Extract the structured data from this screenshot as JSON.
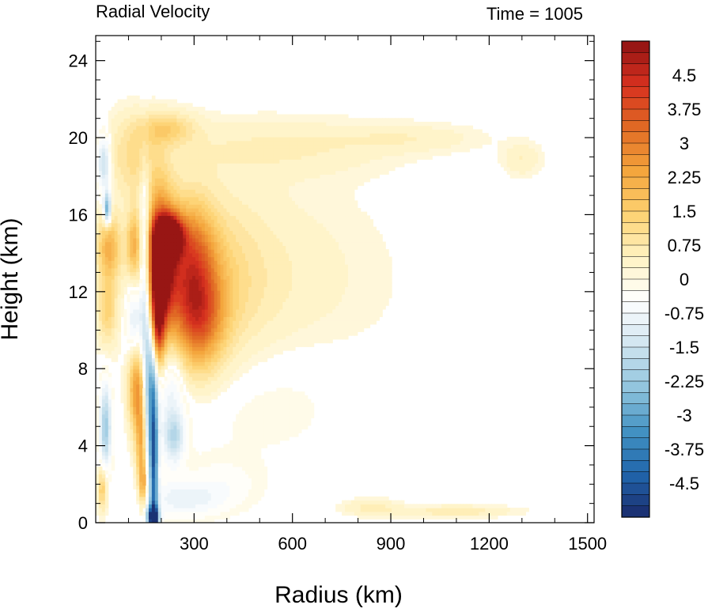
{
  "chart_data": {
    "type": "heatmap",
    "title": "Radial Velocity",
    "subtitle": "Time = 1005",
    "xlabel": "Radius (km)",
    "ylabel": "Height (km)",
    "xlim": [
      0,
      1520
    ],
    "ylim": [
      0,
      25.3
    ],
    "x_ticks": [
      300,
      600,
      900,
      1200,
      1500
    ],
    "x_tick_labels": [
      "300",
      "600",
      "900",
      "1200",
      "1500"
    ],
    "y_ticks": [
      0,
      4,
      8,
      12,
      16,
      20,
      24
    ],
    "y_tick_labels": [
      "0",
      "4",
      "8",
      "12",
      "16",
      "20",
      "24"
    ],
    "grid": false,
    "colorbar": {
      "vmin": -5.25,
      "vmax": 5.25,
      "step": 0.25,
      "tick_values": [
        4.5,
        3.75,
        3,
        2.25,
        1.5,
        0.75,
        0,
        -0.75,
        -1.5,
        -2.25,
        -3,
        -3.75,
        -4.5
      ],
      "tick_labels": [
        "4.5",
        "3.75",
        "3",
        "2.25",
        "1.5",
        "0.75",
        "0",
        "-0.75",
        "-1.5",
        "-2.25",
        "-3",
        "-3.75",
        "-4.5"
      ],
      "palette": [
        "#1a2a6c",
        "#2166ac",
        "#4393c3",
        "#92c5de",
        "#d1e5f0",
        "#ffffff",
        "#fff3c4",
        "#fdd272",
        "#f4a53c",
        "#e06a24",
        "#d7301f",
        "#8e1212"
      ]
    },
    "features": [
      {
        "r": 195,
        "z": 13.3,
        "sr": 32,
        "sz": 2.4,
        "v": 5.5
      },
      {
        "r": 225,
        "z": 14.9,
        "sr": 28,
        "sz": 0.7,
        "v": 5.4
      },
      {
        "r": 190,
        "z": 10.5,
        "sr": 14,
        "sz": 1.6,
        "v": 3.0
      },
      {
        "r": 290,
        "z": 13.8,
        "sr": 50,
        "sz": 2.0,
        "v": 2.4
      },
      {
        "r": 310,
        "z": 10.6,
        "sr": 55,
        "sz": 1.8,
        "v": 2.8
      },
      {
        "r": 330,
        "z": 12.5,
        "sr": 120,
        "sz": 3.0,
        "v": 1.0
      },
      {
        "r": 470,
        "z": 12.5,
        "sr": 260,
        "sz": 3.5,
        "v": 0.5
      },
      {
        "r": 165,
        "z": 7.0,
        "sr": 14,
        "sz": 3.5,
        "v": -2.8
      },
      {
        "r": 150,
        "z": 13.5,
        "sr": 12,
        "sz": 3.0,
        "v": -2.5
      },
      {
        "r": 178,
        "z": 3.0,
        "sr": 8,
        "sz": 3.0,
        "v": -3.5
      },
      {
        "r": 175,
        "z": 0.3,
        "sr": 12,
        "sz": 0.4,
        "v": -5.5
      },
      {
        "r": 125,
        "z": 7.0,
        "sr": 18,
        "sz": 1.6,
        "v": 2.6
      },
      {
        "r": 140,
        "z": 4.0,
        "sr": 12,
        "sz": 1.6,
        "v": 2.2
      },
      {
        "r": 145,
        "z": 2.0,
        "sr": 8,
        "sz": 0.8,
        "v": 1.8
      },
      {
        "r": 40,
        "z": 14.3,
        "sr": 25,
        "sz": 1.2,
        "v": 2.0
      },
      {
        "r": 115,
        "z": 14.5,
        "sr": 15,
        "sz": 1.2,
        "v": 1.6
      },
      {
        "r": 35,
        "z": 16.3,
        "sr": 8,
        "sz": 0.6,
        "v": -3.2
      },
      {
        "r": 25,
        "z": 18.7,
        "sr": 15,
        "sz": 1.0,
        "v": -1.8
      },
      {
        "r": 30,
        "z": 5.0,
        "sr": 12,
        "sz": 1.5,
        "v": -2.2
      },
      {
        "r": 20,
        "z": 1.8,
        "sr": 10,
        "sz": 0.8,
        "v": 1.6
      },
      {
        "r": 35,
        "z": 11.0,
        "sr": 20,
        "sz": 1.2,
        "v": 1.2
      },
      {
        "r": 120,
        "z": 10.5,
        "sr": 20,
        "sz": 1.5,
        "v": -1.5
      },
      {
        "r": 230,
        "z": 7.5,
        "sr": 30,
        "sz": 3.0,
        "v": -1.0
      },
      {
        "r": 240,
        "z": 4.5,
        "sr": 20,
        "sz": 0.8,
        "v": -1.3
      },
      {
        "r": 270,
        "z": 1.2,
        "sr": 80,
        "sz": 0.6,
        "v": -0.8
      },
      {
        "r": 120,
        "z": 19.0,
        "sr": 60,
        "sz": 1.5,
        "v": 1.0
      },
      {
        "r": 220,
        "z": 20.5,
        "sr": 60,
        "sz": 0.6,
        "v": 1.2
      },
      {
        "r": 560,
        "z": 19.5,
        "sr": 240,
        "sz": 1.0,
        "v": 0.5
      },
      {
        "r": 960,
        "z": 20.0,
        "sr": 150,
        "sz": 0.5,
        "v": 0.4
      },
      {
        "r": 1300,
        "z": 18.9,
        "sr": 40,
        "sz": 0.6,
        "v": 0.5
      },
      {
        "r": 490,
        "z": 7.0,
        "sr": 200,
        "sz": 2.5,
        "v": -0.3
      },
      {
        "r": 380,
        "z": 2.0,
        "sr": 80,
        "sz": 0.9,
        "v": -0.4
      },
      {
        "r": 1100,
        "z": 0.6,
        "sr": 120,
        "sz": 0.2,
        "v": 0.7
      },
      {
        "r": 840,
        "z": 0.8,
        "sr": 60,
        "sz": 0.3,
        "v": 0.6
      }
    ]
  }
}
